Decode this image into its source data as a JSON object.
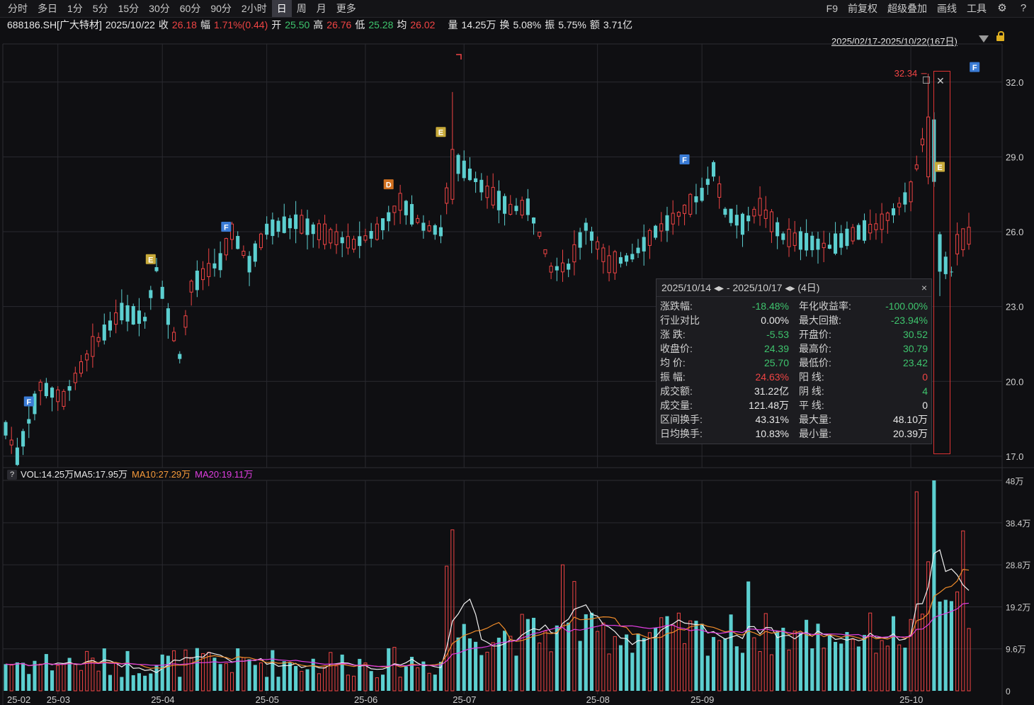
{
  "toolbar": {
    "left": [
      "分时",
      "多日",
      "1分",
      "5分",
      "15分",
      "30分",
      "60分",
      "90分",
      "2小时",
      "日",
      "周",
      "月",
      "更多"
    ],
    "active": "日",
    "right": [
      "F9",
      "前复权",
      "超级叠加",
      "画线",
      "工具"
    ]
  },
  "quote": {
    "code": "688186.SH[广大特材]",
    "date": "2025/10/22",
    "close_label": "收",
    "close": "26.18",
    "change_label": "幅",
    "change": "1.71%(0.44)",
    "open_label": "开",
    "open": "25.50",
    "high_label": "高",
    "high": "26.76",
    "low_label": "低",
    "low": "25.28",
    "avg_label": "均",
    "avg": "26.02",
    "vol_label": "量",
    "vol": "14.25万",
    "turnover_label": "换",
    "turnover": "5.08%",
    "amp_label": "振",
    "amp": "5.75%",
    "amount_label": "额",
    "amount": "3.71亿"
  },
  "range_label": "2025/02/17-2025/10/22(167日)",
  "volume_legend": {
    "q": "?",
    "vol": "VOL:14.25万",
    "ma5": "MA5:17.95万",
    "ma10": "MA10:27.29万",
    "ma20": "MA20:19.11万"
  },
  "stats": {
    "header": "2025/10/14 ◂▸ - 2025/10/17 ◂▸  (4日)",
    "close": "×",
    "rows": [
      {
        "k": "涨跌幅:",
        "v": "-18.48%",
        "vc": "green",
        "k2": "年化收益率:",
        "v2": "-100.00%",
        "v2c": "green"
      },
      {
        "k": "行业对比",
        "v": "0.00%",
        "vc": "white",
        "k2": "最大回撤:",
        "v2": "-23.94%",
        "v2c": "green"
      },
      {
        "k": "涨  跌:",
        "v": "-5.53",
        "vc": "green",
        "k2": "开盘价:",
        "v2": "30.52",
        "v2c": "green"
      },
      {
        "k": "收盘价:",
        "v": "24.39",
        "vc": "green",
        "k2": "最高价:",
        "v2": "30.79",
        "v2c": "green"
      },
      {
        "k": "均  价:",
        "v": "25.70",
        "vc": "green",
        "k2": "最低价:",
        "v2": "23.42",
        "v2c": "green"
      },
      {
        "k": "振  幅:",
        "v": "24.63%",
        "vc": "red",
        "k2": "阳  线:",
        "v2": "0",
        "v2c": "red"
      },
      {
        "k": "成交额:",
        "v": "31.22亿",
        "vc": "white",
        "k2": "阴  线:",
        "v2": "4",
        "v2c": "green"
      },
      {
        "k": "成交量:",
        "v": "121.48万",
        "vc": "white",
        "k2": "平  线:",
        "v2": "0",
        "v2c": "white"
      },
      {
        "k": "区间换手:",
        "v": "43.31%",
        "vc": "white",
        "k2": "最大量:",
        "v2": "48.10万",
        "v2c": "white"
      },
      {
        "k": "日均换手:",
        "v": "10.83%",
        "vc": "white",
        "k2": "最小量:",
        "v2": "20.39万",
        "v2c": "white"
      }
    ]
  },
  "colors": {
    "up": "#ef4444",
    "down": "#5ccfd0",
    "ma5": "#f0f0f0",
    "ma10": "#f08c2a",
    "ma20": "#e03ee0",
    "grid": "#2a2a30"
  },
  "chart_data": {
    "type": "candlestick",
    "price_ticks": [
      "32.0",
      "29.0",
      "26.0",
      "23.0",
      "20.0",
      "17.0"
    ],
    "price_tick_values": [
      32,
      29,
      26,
      23,
      20,
      17
    ],
    "price_range": [
      16.6,
      33.5
    ],
    "volume_ticks": [
      "48万",
      "38.4万",
      "28.8万",
      "19.2万",
      "9.6万",
      "0"
    ],
    "volume_tick_values": [
      48,
      38.4,
      28.8,
      19.2,
      9.6,
      0
    ],
    "volume_range": [
      0,
      48.1
    ],
    "month_labels": [
      {
        "label": "25-02",
        "idx": 0
      },
      {
        "label": "25-03",
        "idx": 9
      },
      {
        "label": "25-04",
        "idx": 27
      },
      {
        "label": "25-05",
        "idx": 45
      },
      {
        "label": "25-06",
        "idx": 62
      },
      {
        "label": "25-07",
        "idx": 79
      },
      {
        "label": "25-08",
        "idx": 102
      },
      {
        "label": "25-09",
        "idx": 120
      },
      {
        "label": "25-10",
        "idx": 156
      }
    ],
    "max_label": "32.34",
    "markers": [
      {
        "letter": "F",
        "idx": 4,
        "price": 19.2,
        "color": "#3a7bd5"
      },
      {
        "letter": "E",
        "idx": 25,
        "price": 24.9,
        "color": "#c8aa3a"
      },
      {
        "letter": "F",
        "idx": 38,
        "price": 26.2,
        "color": "#3a7bd5"
      },
      {
        "letter": "D",
        "idx": 66,
        "price": 27.9,
        "color": "#d07020"
      },
      {
        "letter": "E",
        "idx": 75,
        "price": 30.0,
        "color": "#c8aa3a"
      },
      {
        "letter": "F",
        "idx": 117,
        "price": 28.9,
        "color": "#3a7bd5"
      },
      {
        "letter": "E",
        "idx": 161,
        "price": 28.6,
        "color": "#c8aa3a"
      },
      {
        "letter": "F",
        "idx": 167,
        "price": 32.6,
        "color": "#3a7bd5"
      }
    ],
    "candles": []
  }
}
